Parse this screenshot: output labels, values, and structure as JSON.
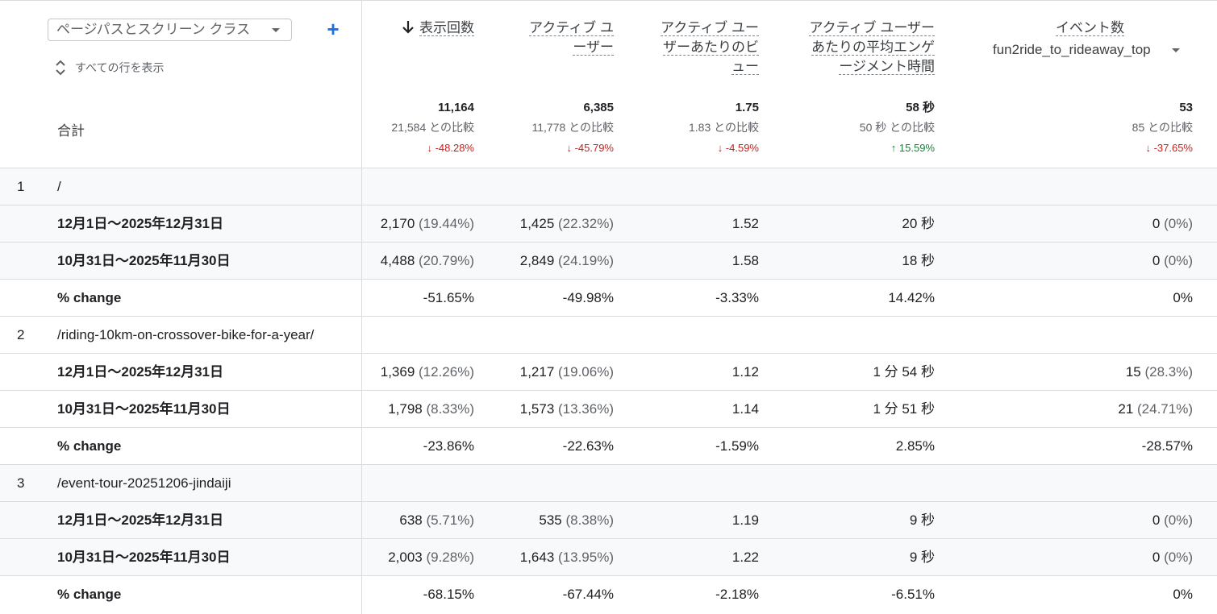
{
  "dimension": {
    "label": "ページパスとスクリーン クラス"
  },
  "show_all": "すべての行を表示",
  "total_label": "合計",
  "columns": {
    "views": "表示回数",
    "active_users_l1": "アクティブ ユ",
    "active_users_l2": "ーザー",
    "views_per_user_l1": "アクティブ ユー",
    "views_per_user_l2": "ザーあたりのビ",
    "views_per_user_l3": "ュー",
    "engagement_l1": "アクティブ ユーザー",
    "engagement_l2": "あたりの平均エンゲ",
    "engagement_l3": "ージメント時間",
    "events": "イベント数",
    "event_name": "fun2ride_to_rideaway_top"
  },
  "totals": [
    {
      "value": "11,164",
      "compare": "21,584 との比較",
      "delta": "↓ -48.28%"
    },
    {
      "value": "6,385",
      "compare": "11,778 との比較",
      "delta": "↓ -45.79%"
    },
    {
      "value": "1.75",
      "compare": "1.83 との比較",
      "delta": "↓ -4.59%"
    },
    {
      "value": "58 秒",
      "compare": "50 秒 との比較",
      "delta": "↑ 15.59%"
    },
    {
      "value": "53",
      "compare": "85 との比較",
      "delta": "↓ -37.65%"
    }
  ],
  "rows": [
    {
      "num": "1",
      "path": "/",
      "period1": {
        "label": "12月1日～2025年12月31日",
        "c1": "2,170",
        "p1": "(19.44%)",
        "c2": "1,425",
        "p2": "(22.32%)",
        "c3": "1.52",
        "c4": "20 秒",
        "c5": "0",
        "p5": "(0%)"
      },
      "period2": {
        "label": "10月31日～2025年11月30日",
        "c1": "4,488",
        "p1": "(20.79%)",
        "c2": "2,849",
        "p2": "(24.19%)",
        "c3": "1.58",
        "c4": "18 秒",
        "c5": "0",
        "p5": "(0%)"
      },
      "change": {
        "label": "% change",
        "c1": "-51.65%",
        "c2": "-49.98%",
        "c3": "-3.33%",
        "c4": "14.42%",
        "c5": "0%"
      }
    },
    {
      "num": "2",
      "path": "/riding-10km-on-crossover-bike-for-a-year/",
      "period1": {
        "label": "12月1日～2025年12月31日",
        "c1": "1,369",
        "p1": "(12.26%)",
        "c2": "1,217",
        "p2": "(19.06%)",
        "c3": "1.12",
        "c4": "1 分 54 秒",
        "c5": "15",
        "p5": "(28.3%)"
      },
      "period2": {
        "label": "10月31日～2025年11月30日",
        "c1": "1,798",
        "p1": "(8.33%)",
        "c2": "1,573",
        "p2": "(13.36%)",
        "c3": "1.14",
        "c4": "1 分 51 秒",
        "c5": "21",
        "p5": "(24.71%)"
      },
      "change": {
        "label": "% change",
        "c1": "-23.86%",
        "c2": "-22.63%",
        "c3": "-1.59%",
        "c4": "2.85%",
        "c5": "-28.57%"
      }
    },
    {
      "num": "3",
      "path": "/event-tour-20251206-jindaiji",
      "period1": {
        "label": "12月1日～2025年12月31日",
        "c1": "638",
        "p1": "(5.71%)",
        "c2": "535",
        "p2": "(8.38%)",
        "c3": "1.19",
        "c4": "9 秒",
        "c5": "0",
        "p5": "(0%)"
      },
      "period2": {
        "label": "10月31日～2025年11月30日",
        "c1": "2,003",
        "p1": "(9.28%)",
        "c2": "1,643",
        "p2": "(13.95%)",
        "c3": "1.22",
        "c4": "9 秒",
        "c5": "0",
        "p5": "(0%)"
      },
      "change": {
        "label": "% change",
        "c1": "-68.15%",
        "c2": "-67.44%",
        "c3": "-2.18%",
        "c4": "-6.51%",
        "c5": "0%"
      }
    }
  ]
}
